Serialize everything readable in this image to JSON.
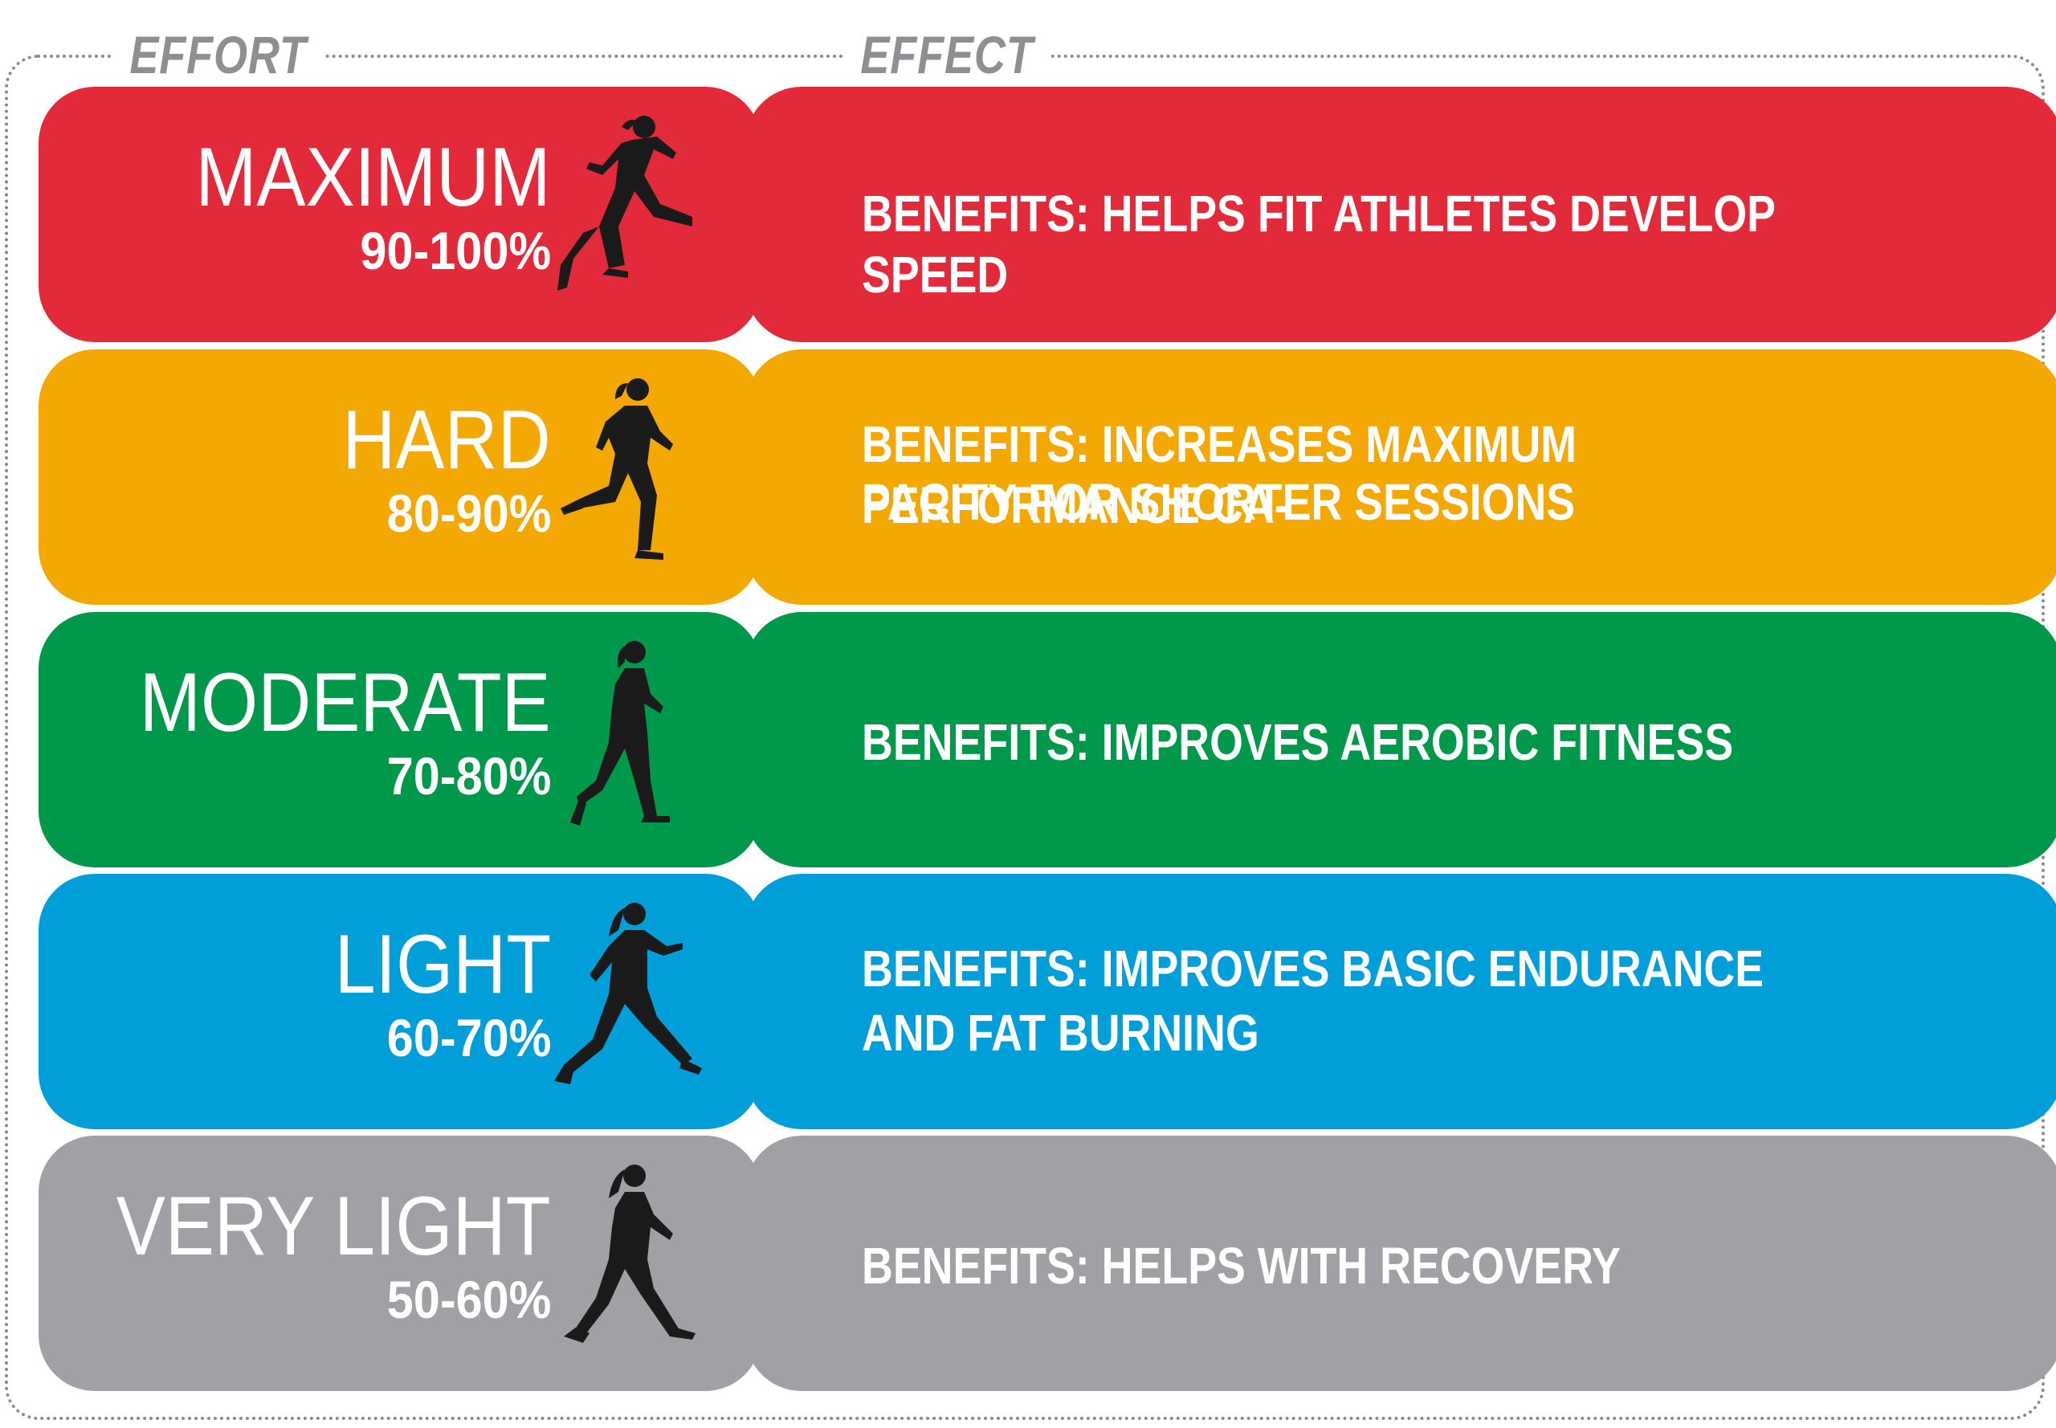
{
  "headers": {
    "effort": "EFFORT",
    "effect": "EFFECT"
  },
  "levels": [
    {
      "name": "MAXIMUM",
      "percent": "90-100%",
      "benefit_line1": "BENEFITS: HELPS FIT ATHLETES DEVELOP SPEED",
      "benefit_line2": "",
      "color": "#e32a3b",
      "icon": "sprinter-icon"
    },
    {
      "name": "HARD",
      "percent": "80-90%",
      "benefit_line1": "BENEFITS: INCREASES MAXIMUM PERFORMANCE CA-",
      "benefit_line2": "PACITY FOR SHORTER SESSIONS",
      "color": "#f4a804",
      "icon": "runner-icon"
    },
    {
      "name": "MODERATE",
      "percent": "70-80%",
      "benefit_line1": "BENEFITS: IMPROVES AEROBIC FITNESS",
      "benefit_line2": "",
      "color": "#00994b",
      "icon": "jogger-icon"
    },
    {
      "name": "LIGHT",
      "percent": "60-70%",
      "benefit_line1": "BENEFITS: IMPROVES BASIC ENDURANCE",
      "benefit_line2": "AND FAT BURNING",
      "color": "#009fd9",
      "icon": "brisk-walker-icon"
    },
    {
      "name": "VERY LIGHT",
      "percent": "50-60%",
      "benefit_line1": "BENEFITS: HELPS WITH RECOVERY",
      "benefit_line2": "",
      "color": "#a0a1a4",
      "icon": "walker-icon"
    }
  ]
}
